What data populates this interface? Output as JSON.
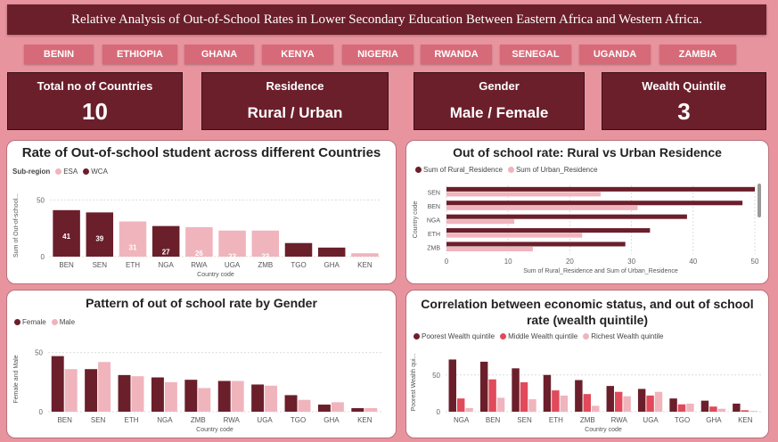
{
  "title": "Relative Analysis of Out-of-School Rates in Lower Secondary Education Between Eastern Africa and Western Africa.",
  "slicers": [
    "BENIN",
    "ETHIOPIA",
    "GHANA",
    "KENYA",
    "NIGERIA",
    "RWANDA",
    "SENEGAL",
    "UGANDA",
    "ZAMBIA"
  ],
  "cards": [
    {
      "label": "Total no of Countries",
      "value": "10"
    },
    {
      "label": "Residence",
      "value": "Rural / Urban"
    },
    {
      "label": "Gender",
      "value": "Male / Female"
    },
    {
      "label": "Wealth Quintile",
      "value": "3"
    }
  ],
  "colors": {
    "dark": "#6b1f2b",
    "light": "#f0b4bd",
    "mid": "#e04a5a",
    "page": "#e8949f"
  },
  "chart_data": [
    {
      "type": "bar",
      "title": "Rate of Out-of-school student across different Countries",
      "legend_title": "Sub-region",
      "legend": [
        "ESA",
        "WCA"
      ],
      "categories": [
        "BEN",
        "SEN",
        "ETH",
        "NGA",
        "RWA",
        "UGA",
        "ZMB",
        "TGO",
        "GHA",
        "KEN"
      ],
      "values": [
        41,
        39,
        31,
        27,
        26,
        23,
        23,
        12,
        8,
        3
      ],
      "labels": [
        "41",
        "39",
        "31",
        "27",
        "26",
        "23",
        "23",
        "12",
        "",
        ""
      ],
      "region": [
        "WCA",
        "WCA",
        "ESA",
        "WCA",
        "ESA",
        "ESA",
        "ESA",
        "WCA",
        "WCA",
        "ESA"
      ],
      "xlabel": "Country code",
      "ylabel": "Sum of Out-of-school...",
      "yticks": [
        "0",
        "50"
      ],
      "ylim": [
        0,
        55
      ]
    },
    {
      "type": "bar",
      "orientation": "horizontal",
      "title": "Out of school rate: Rural vs Urban Residence",
      "categories": [
        "SEN",
        "BEN",
        "NGA",
        "ETH",
        "ZMB"
      ],
      "series": [
        {
          "name": "Sum of Rural_Residence",
          "values": [
            50,
            48,
            39,
            33,
            29
          ]
        },
        {
          "name": "Sum of Urban_Residence",
          "values": [
            25,
            31,
            11,
            22,
            14
          ]
        }
      ],
      "xlabel": "Sum of Rural_Residence and Sum of Urban_Residence",
      "ylabel": "Country code",
      "xticks": [
        "0",
        "10",
        "20",
        "30",
        "40",
        "50"
      ],
      "xlim": [
        0,
        50
      ]
    },
    {
      "type": "bar",
      "title": "Pattern of out of school rate by Gender",
      "categories": [
        "BEN",
        "SEN",
        "ETH",
        "NGA",
        "ZMB",
        "RWA",
        "UGA",
        "TGO",
        "GHA",
        "KEN"
      ],
      "series": [
        {
          "name": "Female",
          "values": [
            47,
            36,
            31,
            29,
            27,
            26,
            23,
            14,
            6,
            3
          ]
        },
        {
          "name": "Male",
          "values": [
            36,
            42,
            30,
            25,
            20,
            26,
            22,
            10,
            8,
            3
          ]
        }
      ],
      "xlabel": "Country code",
      "ylabel": "Female and Male",
      "yticks": [
        "0",
        "50"
      ],
      "ylim": [
        0,
        55
      ]
    },
    {
      "type": "bar",
      "title": "Correlation between economic status, and out of school rate (wealth quintile)",
      "categories": [
        "NGA",
        "BEN",
        "SEN",
        "ETH",
        "ZMB",
        "RWA",
        "UGA",
        "TGO",
        "GHA",
        "KEN"
      ],
      "series": [
        {
          "name": "Poorest Wealth quintile",
          "values": [
            71,
            68,
            59,
            50,
            43,
            35,
            31,
            18,
            15,
            11
          ]
        },
        {
          "name": "Middle Wealth quintile",
          "values": [
            18,
            44,
            40,
            29,
            24,
            27,
            22,
            10,
            7,
            2
          ]
        },
        {
          "name": "Richest Wealth quintile",
          "values": [
            5,
            19,
            17,
            22,
            8,
            21,
            27,
            11,
            4,
            1
          ]
        }
      ],
      "xlabel": "Country code",
      "ylabel": "Poorest Wealth qui...",
      "yticks": [
        "0",
        "50"
      ],
      "ylim": [
        0,
        80
      ]
    }
  ]
}
